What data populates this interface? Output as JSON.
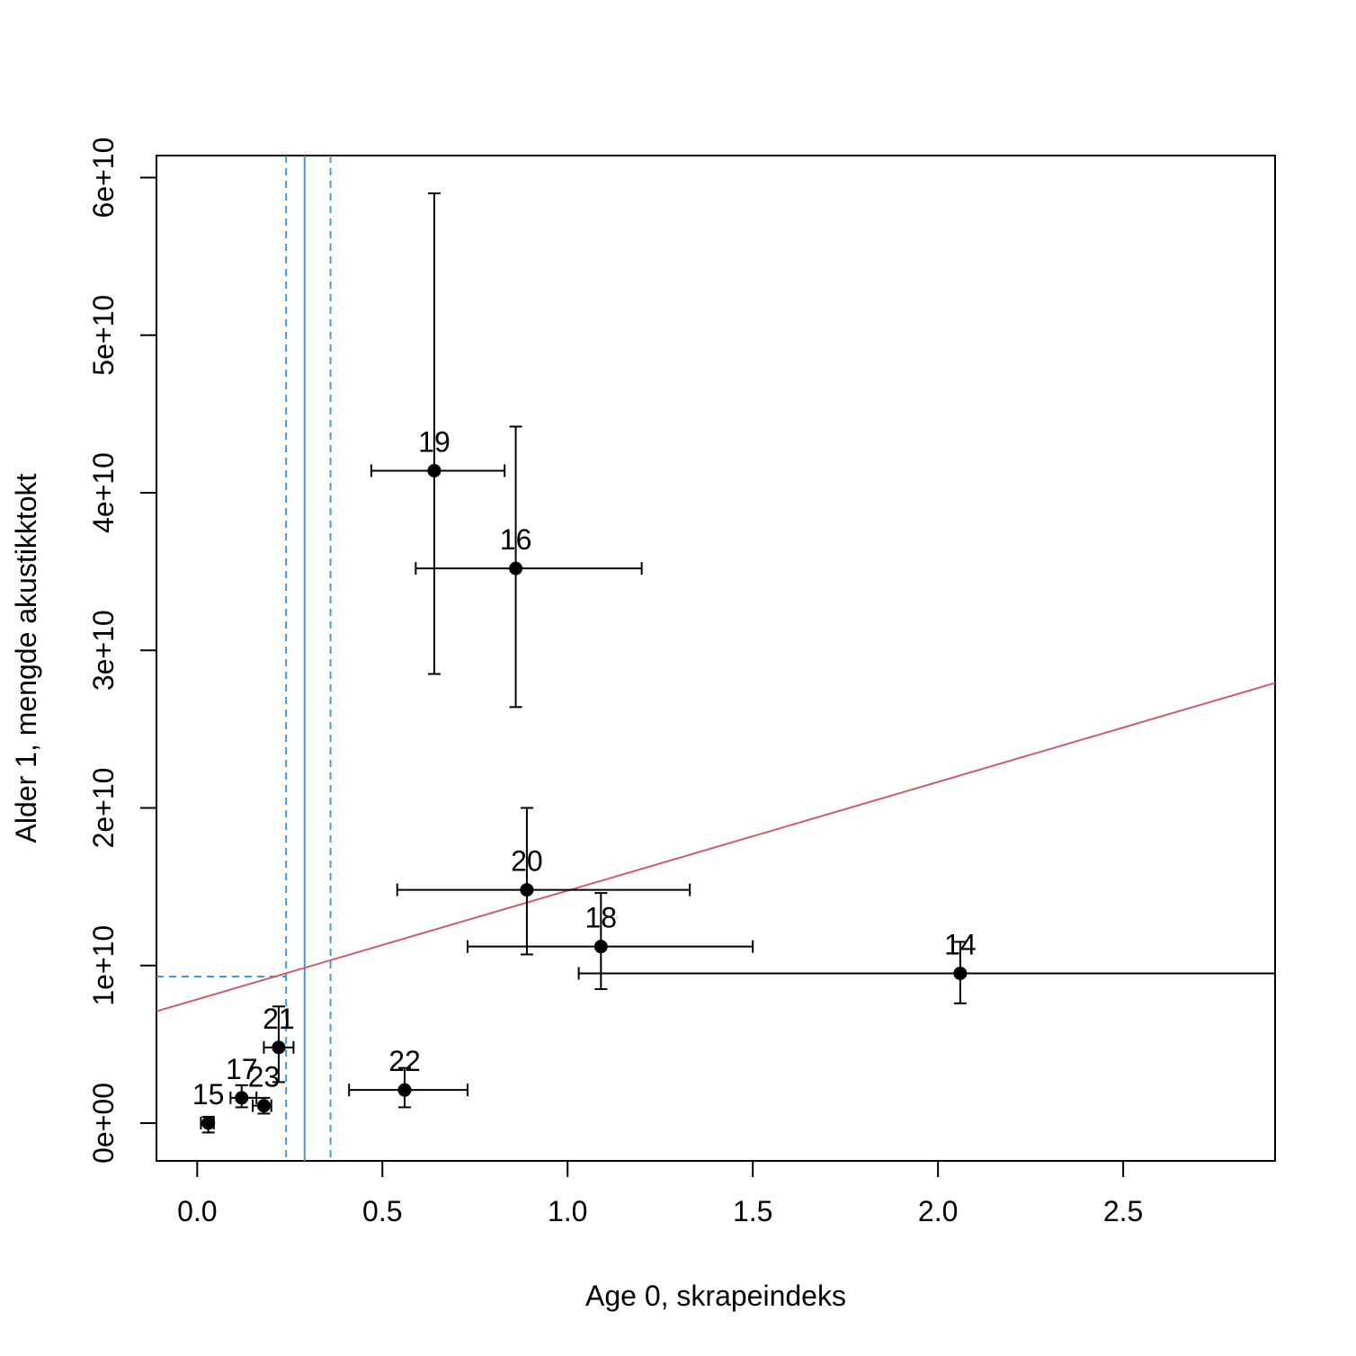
{
  "chart_data": {
    "type": "scatter",
    "xlabel": "Age 0, skrapeindeks",
    "ylabel": "Alder 1, mengde akustikktokt",
    "xlim": [
      -0.11,
      2.91
    ],
    "ylim": [
      -2400000000.0,
      61400000000.0
    ],
    "x_ticks": [
      0.0,
      0.5,
      1.0,
      1.5,
      2.0,
      2.5
    ],
    "x_tick_labels": [
      "0.0",
      "0.5",
      "1.0",
      "1.5",
      "2.0",
      "2.5"
    ],
    "y_ticks": [
      0,
      10000000000.0,
      20000000000.0,
      30000000000.0,
      40000000000.0,
      50000000000.0,
      60000000000.0
    ],
    "y_tick_labels": [
      "0e+00",
      "1e+10",
      "2e+10",
      "3e+10",
      "4e+10",
      "5e+10",
      "6e+10"
    ],
    "points": [
      {
        "label": "14",
        "x": 2.06,
        "y": 9500000000.0,
        "x_lo": 1.03,
        "x_hi": 2.91,
        "y_lo": 7600000000.0,
        "y_hi": 11500000000.0
      },
      {
        "label": "15",
        "x": 0.03,
        "y": 0.0,
        "x_lo": 0.01,
        "x_hi": 0.045,
        "y_lo": -600000000.0,
        "y_hi": 400000000.0
      },
      {
        "label": "16",
        "x": 0.86,
        "y": 35200000000.0,
        "x_lo": 0.59,
        "x_hi": 1.2,
        "y_lo": 26400000000.0,
        "y_hi": 44200000000.0
      },
      {
        "label": "17",
        "x": 0.12,
        "y": 1600000000.0,
        "x_lo": 0.09,
        "x_hi": 0.16,
        "y_lo": 1000000000.0,
        "y_hi": 2400000000.0
      },
      {
        "label": "18",
        "x": 1.09,
        "y": 11200000000.0,
        "x_lo": 0.73,
        "x_hi": 1.5,
        "y_lo": 8500000000.0,
        "y_hi": 14600000000.0
      },
      {
        "label": "19",
        "x": 0.64,
        "y": 41400000000.0,
        "x_lo": 0.47,
        "x_hi": 0.83,
        "y_lo": 28500000000.0,
        "y_hi": 59000000000.0
      },
      {
        "label": "20",
        "x": 0.89,
        "y": 14800000000.0,
        "x_lo": 0.54,
        "x_hi": 1.33,
        "y_lo": 10700000000.0,
        "y_hi": 20000000000.0
      },
      {
        "label": "21",
        "x": 0.22,
        "y": 4800000000.0,
        "x_lo": 0.18,
        "x_hi": 0.26,
        "y_lo": 2600000000.0,
        "y_hi": 7400000000.0
      },
      {
        "label": "22",
        "x": 0.56,
        "y": 2100000000.0,
        "x_lo": 0.41,
        "x_hi": 0.73,
        "y_lo": 1000000000.0,
        "y_hi": 3500000000.0
      },
      {
        "label": "23",
        "x": 0.18,
        "y": 1100000000.0,
        "x_lo": 0.15,
        "x_hi": 0.2,
        "y_lo": 600000000.0,
        "y_hi": 1600000000.0
      }
    ],
    "regression_line": {
      "intercept": 7850000000.0,
      "slope": 6900000000.0,
      "color": "#CD5C6E"
    },
    "threshold": {
      "x": 0.29,
      "x_lo": 0.24,
      "x_hi": 0.36,
      "y": 9300000000.0,
      "color": "#3D9BD8"
    }
  }
}
